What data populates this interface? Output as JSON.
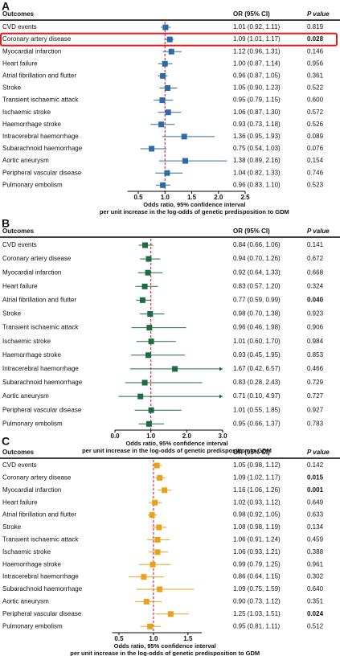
{
  "chart_data": [
    {
      "type": "forest",
      "panel": "A",
      "header_outcome": "Outcomes",
      "header_or": "OR (95% CI)",
      "header_p": "P value",
      "color": "#2b6ca8",
      "reference_line": 1,
      "highlight_row": 1,
      "bold_p": [
        1
      ],
      "categories": [
        "CVD events",
        "Coronary artery disease",
        "Myocardial infarction",
        "Heart failure",
        "Atrial fibrillation and flutter",
        "Stroke",
        "Transient ischaemic attack",
        "Ischaemic stroke",
        "Haemorrhage stroke",
        "Intracerebral haemorrhage",
        "Subarachnoid haemorrhage",
        "Aortic aneurysm",
        "Peripheral vascular disease",
        "Pulmonary embolism"
      ],
      "values": [
        1.01,
        1.09,
        1.12,
        1.0,
        0.96,
        1.05,
        0.95,
        1.06,
        0.93,
        1.36,
        0.75,
        1.38,
        1.04,
        0.96
      ],
      "lower": [
        0.92,
        1.01,
        0.96,
        0.87,
        0.87,
        0.9,
        0.79,
        0.87,
        0.73,
        0.95,
        0.54,
        0.89,
        0.82,
        0.83
      ],
      "upper": [
        1.11,
        1.17,
        1.31,
        1.14,
        1.05,
        1.23,
        1.15,
        1.3,
        1.18,
        1.93,
        1.03,
        2.16,
        1.33,
        1.1
      ],
      "value_labels": [
        "1.01 (0.92, 1.11)",
        "1.09 (1.01, 1.17)",
        "1.12 (0.96, 1.31)",
        "1.00 (0.87, 1.14)",
        "0.96 (0.87, 1.05)",
        "1.05 (0.90, 1.23)",
        "0.95 (0.79, 1.15)",
        "1.06 (0.87, 1.30)",
        "0.93 (0.73, 1.18)",
        "1.36 (0.95, 1.93)",
        "0.75 (0.54, 1.03)",
        "1.38 (0.89, 2.16)",
        "1.04 (0.82, 1.33)",
        "0.96 (0.83, 1.10)"
      ],
      "p_values": [
        "0.819",
        "0.028",
        "0.146",
        "0.956",
        "0.361",
        "0.522",
        "0.600",
        "0.572",
        "0.526",
        "0.089",
        "0.076",
        "0.154",
        "0.746",
        "0.523"
      ],
      "xlim": [
        0.3,
        2.5
      ],
      "xticks": [
        0.5,
        {
          "value": 1,
          "label": "1.0"
        },
        1.5,
        {
          "value": 2,
          "label": "2.0"
        },
        2.5
      ],
      "xlabel": [
        "Odds ratio, 95% confidence interval",
        "per unit increase in the log-odds of genetic predisposition to GDM"
      ]
    },
    {
      "type": "forest",
      "panel": "B",
      "header_outcome": "Outcomes",
      "header_or": "OR (95% CI)",
      "header_p": "P value",
      "color": "#1d6b46",
      "reference_line": 1,
      "bold_p": [
        4
      ],
      "categories": [
        "CVD events",
        "Coronary artery disease",
        "Myocardial infarction",
        "Heart failure",
        "Atrial fibrillation and flutter",
        "Stroke",
        "Transient ischaemic attack",
        "Ischaemic stroke",
        "Haemorrhage stroke",
        "Intracerebral haemorrhage",
        "Subarachnoid haemorrhage",
        "Aortic aneurysm",
        "Peripheral vascular disease",
        "Pulmonary embolism"
      ],
      "values": [
        0.84,
        0.94,
        0.92,
        0.83,
        0.77,
        0.98,
        0.96,
        1.01,
        0.93,
        1.67,
        0.83,
        0.71,
        1.01,
        0.95
      ],
      "lower": [
        0.66,
        0.7,
        0.64,
        0.57,
        0.59,
        0.7,
        0.46,
        0.6,
        0.45,
        0.42,
        0.28,
        0.1,
        0.55,
        0.66
      ],
      "upper": [
        1.06,
        1.26,
        1.33,
        1.2,
        0.99,
        1.38,
        1.98,
        1.7,
        1.95,
        6.57,
        2.43,
        4.97,
        1.85,
        1.37
      ],
      "value_labels": [
        "0.84 (0.66, 1.06)",
        "0.94 (0.70, 1.26)",
        "0.92 (0.64, 1.33)",
        "0.83 (0.57, 1.20)",
        "0.77 (0.59, 0.99)",
        "0.98 (0.70, 1.38)",
        "0.96 (0.46, 1.98)",
        "1.01 (0.60, 1.70)",
        "0.93 (0.45, 1.95)",
        "1.67 (0.42, 6.57)",
        "0.83 (0.28, 2.43)",
        "0.71 (0.10, 4.97)",
        "1.01 (0.55, 1.85)",
        "0.95 (0.66, 1.37)"
      ],
      "p_values": [
        "0.141",
        "0.672",
        "0.668",
        "0.324",
        "0.040",
        "0.923",
        "0.906",
        "0.984",
        "0.853",
        "0.466",
        "0.729",
        "0.727",
        "0.927",
        "0.783"
      ],
      "xlim": [
        0,
        3
      ],
      "xticks": [
        {
          "value": 0,
          "label": "0.0"
        },
        {
          "value": 1,
          "label": "1.0"
        },
        {
          "value": 2,
          "label": "2.0"
        },
        {
          "value": 3,
          "label": "3.0"
        }
      ],
      "xlabel": [
        "Odds ratio, 95% confidence interval",
        "per unit increase in the log-odds of genetic predisposition to GDM"
      ]
    },
    {
      "type": "forest",
      "panel": "C",
      "header_outcome": "Outcomes",
      "header_or": "OR (95% CI)",
      "header_p": "P value",
      "color": "#e9a11c",
      "reference_line": 1,
      "bold_p": [
        1,
        2,
        12
      ],
      "categories": [
        "CVD events",
        "Coronary artery disease",
        "Myocardial infarction",
        "Heart failure",
        "Atrial fibrillation and flutter",
        "Stroke",
        "Transient ischaemic attack",
        "Ischaemic stroke",
        "Haemorrhage stroke",
        "Intracerebral haemorrhage",
        "Subarachnoid haemorrhage",
        "Aortic aneurysm",
        "Peripheral vascular disease",
        "Pulmonary embolism"
      ],
      "values": [
        1.05,
        1.09,
        1.16,
        1.02,
        0.98,
        1.08,
        1.06,
        1.06,
        0.99,
        0.86,
        1.09,
        0.9,
        1.25,
        0.95
      ],
      "lower": [
        0.98,
        1.02,
        1.06,
        0.93,
        0.92,
        0.98,
        0.91,
        0.93,
        0.79,
        0.64,
        0.75,
        0.73,
        1.03,
        0.81
      ],
      "upper": [
        1.12,
        1.17,
        1.26,
        1.12,
        1.05,
        1.19,
        1.24,
        1.21,
        1.25,
        1.15,
        1.59,
        1.12,
        1.51,
        1.11
      ],
      "value_labels": [
        "1.05 (0.98, 1.12)",
        "1.09 (1.02, 1.17)",
        "1.16 (1.06, 1.26)",
        "1.02 (0.93, 1.12)",
        "0.98 (0.92, 1.05)",
        "1.08 (0.98, 1.19)",
        "1.06 (0.91, 1.24)",
        "1.06 (0.93, 1.21)",
        "0.99 (0.79, 1.25)",
        "0.86 (0.64, 1.15)",
        "1.09 (0.75, 1.59)",
        "0.90 (0.73, 1.12)",
        "1.25 (1.03, 1.51)",
        "0.95 (0.81, 1.11)"
      ],
      "p_values": [
        "0.142",
        "0.015",
        "0.001",
        "0.649",
        "0.633",
        "0.134",
        "0.459",
        "0.388",
        "0.961",
        "0.302",
        "0.640",
        "0.351",
        "0.024",
        "0.512"
      ],
      "xlim": [
        0.4,
        1.7
      ],
      "xticks": [
        0.5,
        {
          "value": 1,
          "label": "1.0"
        },
        1.5
      ],
      "xlabel": [
        "Odds ratio, 95% confidence interval",
        "per unit increase in the log-odds of genetic predisposition to GDM"
      ]
    }
  ]
}
